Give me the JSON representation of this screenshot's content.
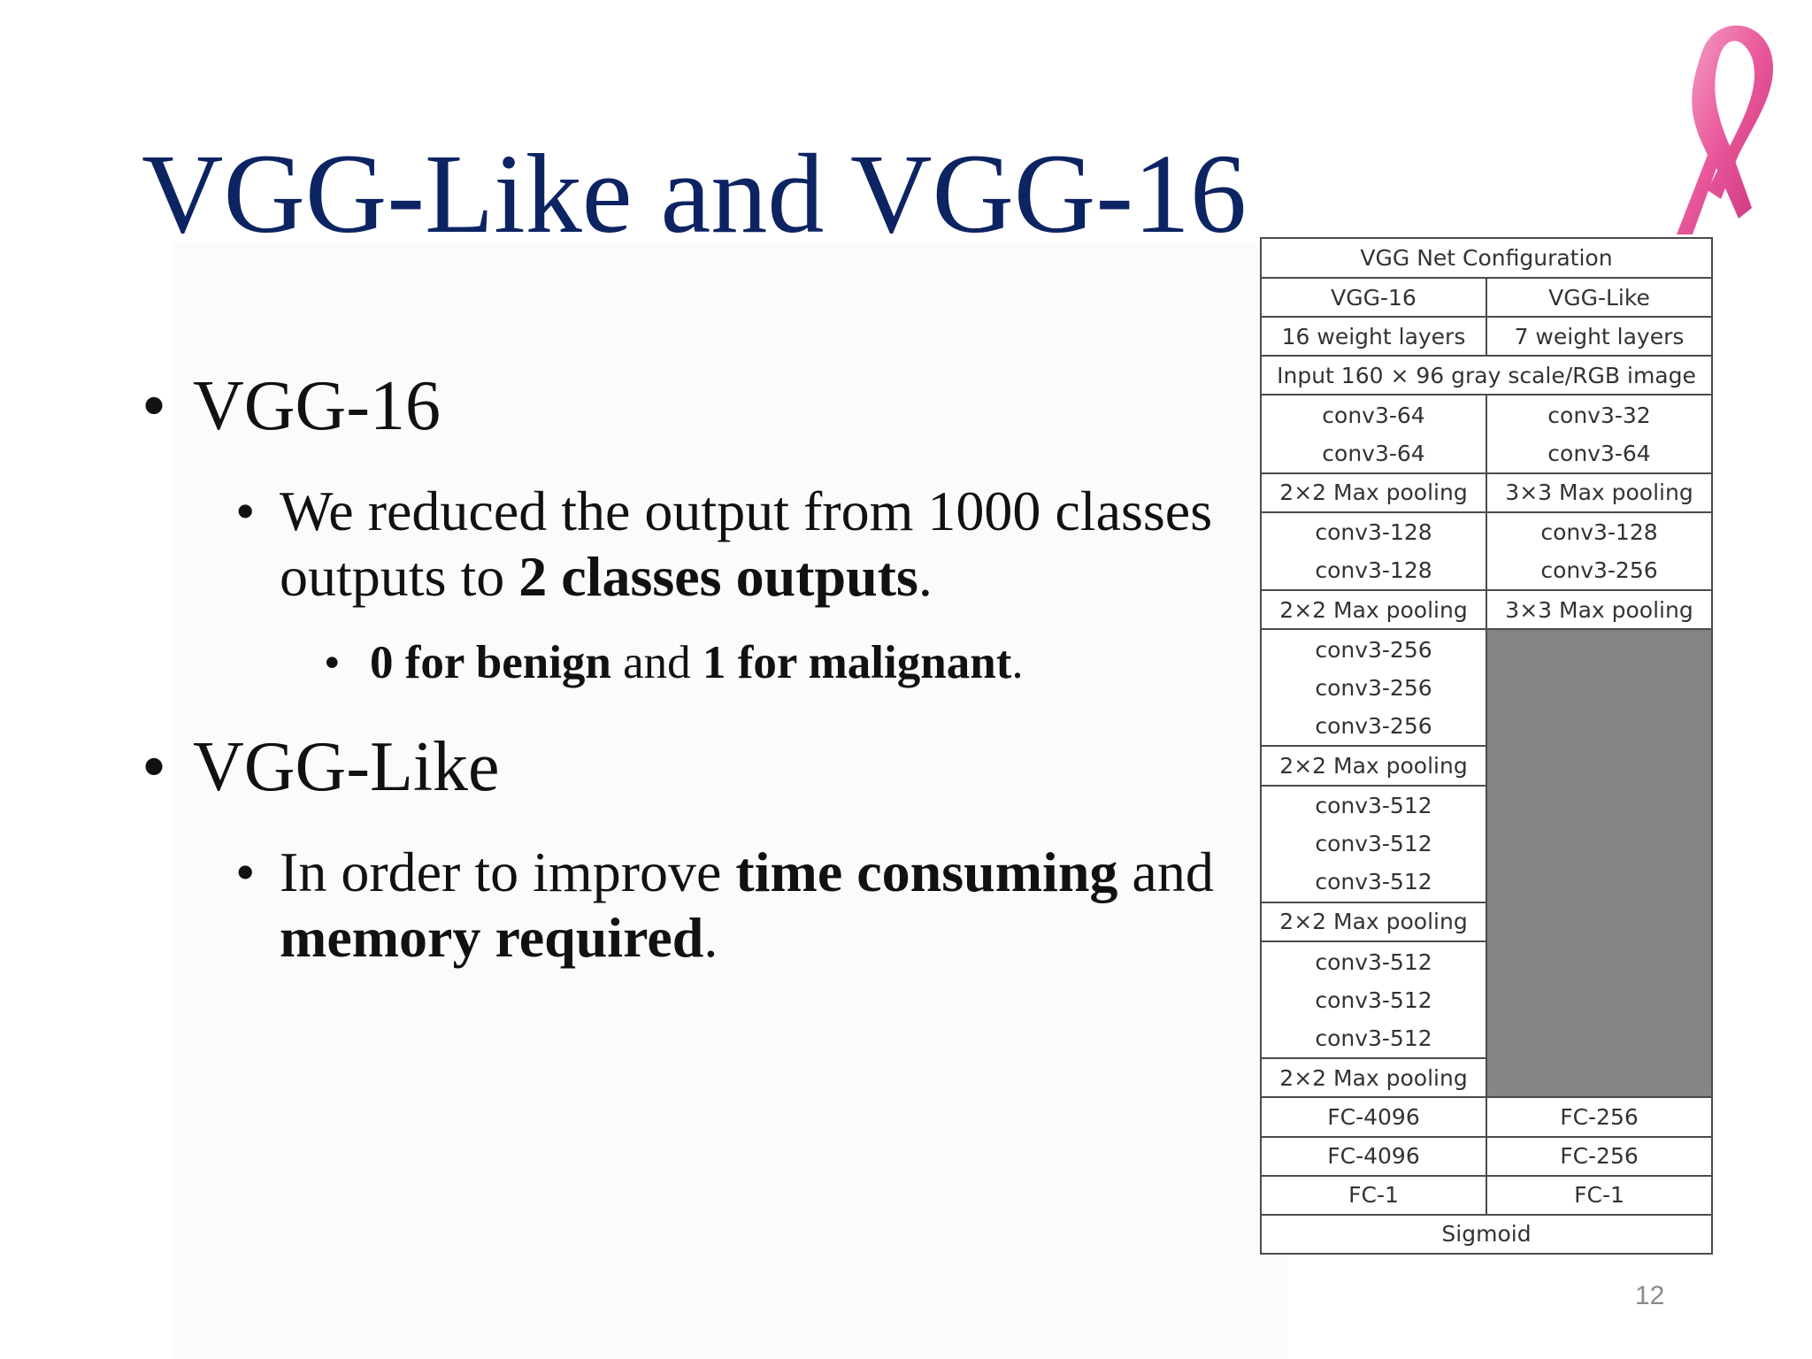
{
  "slide": {
    "title": "VGG-Like and VGG-16",
    "page_number": "12"
  },
  "bullets": {
    "b1_title": "VGG-16",
    "b1_sub_prefix": "We reduced the output from 1000 classes outputs to ",
    "b1_sub_bold": "2 classes outputs",
    "b1_sub_suffix": ".",
    "b1_sub2_bold1": "0 for benign",
    "b1_sub2_mid": " and ",
    "b1_sub2_bold2": "1 for malignant",
    "b1_sub2_suffix": ".",
    "b2_title": "VGG-Like",
    "b2_sub_prefix": "In order to improve ",
    "b2_sub_bold1": "time consuming",
    "b2_sub_mid": " and ",
    "b2_sub_bold2": "memory required",
    "b2_sub_suffix": ".",
    "bullet_char": "•"
  },
  "table": {
    "header": "VGG Net Configuration",
    "col1": "VGG-16",
    "col2": "VGG-Like",
    "col1_layers": "16 weight layers",
    "col2_layers": "7 weight layers",
    "input": "Input  160 × 96  gray scale/RGB image",
    "r1": [
      "conv3-64",
      "conv3-64"
    ],
    "r1b": [
      "conv3-32",
      "conv3-64"
    ],
    "pool1": "2×2 Max pooling",
    "pool1b": "3×3 Max pooling",
    "r2": [
      "conv3-128",
      "conv3-128"
    ],
    "r2b": [
      "conv3-128",
      "conv3-256"
    ],
    "pool2": "2×2 Max pooling",
    "pool2b": "3×3 Max pooling",
    "r3": [
      "conv3-256",
      "conv3-256",
      "conv3-256"
    ],
    "pool3": "2×2 Max pooling",
    "r4": [
      "conv3-512",
      "conv3-512",
      "conv3-512"
    ],
    "pool4": "2×2 Max pooling",
    "r5": [
      "conv3-512",
      "conv3-512",
      "conv3-512"
    ],
    "pool5": "2×2 Max pooling",
    "fc1": [
      "FC-4096",
      "FC-256"
    ],
    "fc2": [
      "FC-4096",
      "FC-256"
    ],
    "fc3": [
      "FC-1",
      "FC-1"
    ],
    "output": "Sigmoid"
  },
  "colors": {
    "title": "#0d2463",
    "ribbon": "#e8579a",
    "empty_cell": "#858487"
  },
  "icons": {
    "ribbon": "pink-awareness-ribbon-icon"
  }
}
